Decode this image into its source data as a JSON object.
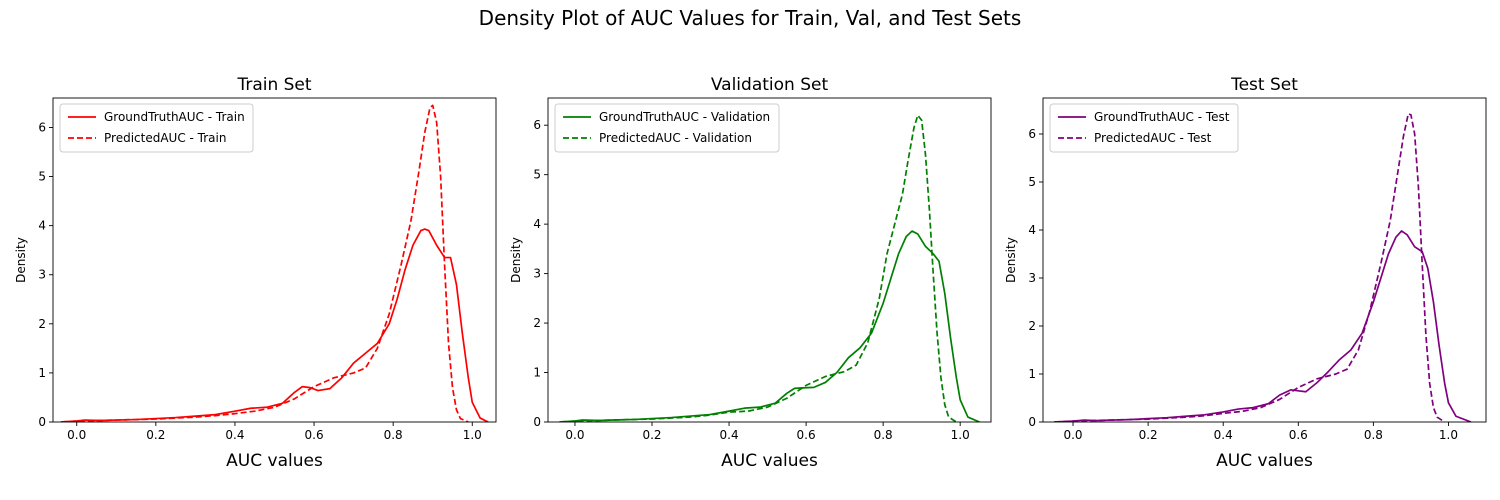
{
  "figure_title": "Density Plot of AUC Values for Train, Val, and Test Sets",
  "chart_data": [
    {
      "type": "line",
      "title": "Train Set",
      "xlabel": "AUC values",
      "ylabel": "Density",
      "xlim": [
        -0.06,
        1.06
      ],
      "ylim": [
        0,
        6.6
      ],
      "xticks": [
        0.0,
        0.2,
        0.4,
        0.6,
        0.8,
        1.0
      ],
      "xtick_labels": [
        "0.0",
        "0.2",
        "0.4",
        "0.6",
        "0.8",
        "1.0"
      ],
      "yticks": [
        0,
        1,
        2,
        3,
        4,
        5,
        6
      ],
      "ytick_labels": [
        "0",
        "1",
        "2",
        "3",
        "4",
        "5",
        "6"
      ],
      "legend_position": "top-left",
      "series": [
        {
          "name": "GroundTruthAUC - Train",
          "color": "#ff0000",
          "style": "solid",
          "points": [
            [
              -0.04,
              0.0
            ],
            [
              0.0,
              0.02
            ],
            [
              0.02,
              0.04
            ],
            [
              0.06,
              0.03
            ],
            [
              0.1,
              0.04
            ],
            [
              0.15,
              0.05
            ],
            [
              0.2,
              0.07
            ],
            [
              0.25,
              0.09
            ],
            [
              0.3,
              0.12
            ],
            [
              0.35,
              0.15
            ],
            [
              0.4,
              0.22
            ],
            [
              0.44,
              0.28
            ],
            [
              0.48,
              0.3
            ],
            [
              0.52,
              0.38
            ],
            [
              0.55,
              0.6
            ],
            [
              0.57,
              0.72
            ],
            [
              0.59,
              0.7
            ],
            [
              0.61,
              0.64
            ],
            [
              0.64,
              0.68
            ],
            [
              0.67,
              0.9
            ],
            [
              0.7,
              1.2
            ],
            [
              0.73,
              1.4
            ],
            [
              0.76,
              1.6
            ],
            [
              0.79,
              2.0
            ],
            [
              0.81,
              2.5
            ],
            [
              0.83,
              3.1
            ],
            [
              0.85,
              3.6
            ],
            [
              0.87,
              3.9
            ],
            [
              0.88,
              3.93
            ],
            [
              0.89,
              3.9
            ],
            [
              0.91,
              3.6
            ],
            [
              0.93,
              3.35
            ],
            [
              0.945,
              3.35
            ],
            [
              0.96,
              2.8
            ],
            [
              0.975,
              1.8
            ],
            [
              0.99,
              0.9
            ],
            [
              1.0,
              0.4
            ],
            [
              1.02,
              0.08
            ],
            [
              1.04,
              0.0
            ]
          ]
        },
        {
          "name": "PredictedAUC - Train",
          "color": "#ff0000",
          "style": "dashed",
          "points": [
            [
              -0.04,
              0.0
            ],
            [
              0.0,
              0.02
            ],
            [
              0.05,
              0.03
            ],
            [
              0.1,
              0.04
            ],
            [
              0.15,
              0.05
            ],
            [
              0.2,
              0.06
            ],
            [
              0.25,
              0.08
            ],
            [
              0.3,
              0.1
            ],
            [
              0.35,
              0.13
            ],
            [
              0.4,
              0.17
            ],
            [
              0.45,
              0.22
            ],
            [
              0.5,
              0.3
            ],
            [
              0.55,
              0.47
            ],
            [
              0.6,
              0.72
            ],
            [
              0.65,
              0.9
            ],
            [
              0.7,
              1.0
            ],
            [
              0.73,
              1.1
            ],
            [
              0.76,
              1.5
            ],
            [
              0.79,
              2.2
            ],
            [
              0.82,
              3.2
            ],
            [
              0.845,
              4.1
            ],
            [
              0.865,
              5.1
            ],
            [
              0.88,
              5.9
            ],
            [
              0.893,
              6.4
            ],
            [
              0.9,
              6.45
            ],
            [
              0.91,
              6.1
            ],
            [
              0.92,
              5.0
            ],
            [
              0.93,
              3.2
            ],
            [
              0.94,
              1.6
            ],
            [
              0.95,
              0.7
            ],
            [
              0.96,
              0.25
            ],
            [
              0.97,
              0.07
            ],
            [
              0.99,
              0.0
            ]
          ]
        }
      ]
    },
    {
      "type": "line",
      "title": "Validation Set",
      "xlabel": "AUC values",
      "ylabel": "Density",
      "xlim": [
        -0.07,
        1.08
      ],
      "ylim": [
        0,
        6.55
      ],
      "xticks": [
        0.0,
        0.2,
        0.4,
        0.6,
        0.8,
        1.0
      ],
      "xtick_labels": [
        "0.0",
        "0.2",
        "0.4",
        "0.6",
        "0.8",
        "1.0"
      ],
      "yticks": [
        0,
        1,
        2,
        3,
        4,
        5,
        6
      ],
      "ytick_labels": [
        "0",
        "1",
        "2",
        "3",
        "4",
        "5",
        "6"
      ],
      "legend_position": "top-left",
      "series": [
        {
          "name": "GroundTruthAUC - Validation",
          "color": "#008000",
          "style": "solid",
          "points": [
            [
              -0.04,
              0.0
            ],
            [
              0.0,
              0.02
            ],
            [
              0.02,
              0.04
            ],
            [
              0.06,
              0.03
            ],
            [
              0.1,
              0.04
            ],
            [
              0.15,
              0.05
            ],
            [
              0.2,
              0.07
            ],
            [
              0.25,
              0.09
            ],
            [
              0.3,
              0.12
            ],
            [
              0.35,
              0.15
            ],
            [
              0.4,
              0.22
            ],
            [
              0.44,
              0.28
            ],
            [
              0.48,
              0.3
            ],
            [
              0.52,
              0.38
            ],
            [
              0.55,
              0.58
            ],
            [
              0.57,
              0.68
            ],
            [
              0.59,
              0.69
            ],
            [
              0.62,
              0.7
            ],
            [
              0.65,
              0.8
            ],
            [
              0.68,
              1.0
            ],
            [
              0.71,
              1.3
            ],
            [
              0.74,
              1.5
            ],
            [
              0.77,
              1.8
            ],
            [
              0.8,
              2.4
            ],
            [
              0.82,
              2.9
            ],
            [
              0.84,
              3.4
            ],
            [
              0.86,
              3.75
            ],
            [
              0.875,
              3.86
            ],
            [
              0.89,
              3.8
            ],
            [
              0.91,
              3.55
            ],
            [
              0.93,
              3.4
            ],
            [
              0.945,
              3.25
            ],
            [
              0.96,
              2.6
            ],
            [
              0.975,
              1.7
            ],
            [
              0.99,
              0.9
            ],
            [
              1.0,
              0.45
            ],
            [
              1.02,
              0.1
            ],
            [
              1.05,
              0.0
            ]
          ]
        },
        {
          "name": "PredictedAUC - Validation",
          "color": "#008000",
          "style": "dashed",
          "points": [
            [
              -0.04,
              0.0
            ],
            [
              0.0,
              0.02
            ],
            [
              0.05,
              0.03
            ],
            [
              0.1,
              0.04
            ],
            [
              0.15,
              0.05
            ],
            [
              0.2,
              0.06
            ],
            [
              0.25,
              0.08
            ],
            [
              0.3,
              0.1
            ],
            [
              0.35,
              0.14
            ],
            [
              0.4,
              0.2
            ],
            [
              0.45,
              0.22
            ],
            [
              0.5,
              0.3
            ],
            [
              0.55,
              0.48
            ],
            [
              0.6,
              0.74
            ],
            [
              0.65,
              0.92
            ],
            [
              0.7,
              1.02
            ],
            [
              0.73,
              1.15
            ],
            [
              0.76,
              1.6
            ],
            [
              0.79,
              2.5
            ],
            [
              0.81,
              3.4
            ],
            [
              0.83,
              4.0
            ],
            [
              0.85,
              4.6
            ],
            [
              0.865,
              5.3
            ],
            [
              0.88,
              5.95
            ],
            [
              0.89,
              6.2
            ],
            [
              0.9,
              6.1
            ],
            [
              0.91,
              5.4
            ],
            [
              0.92,
              4.3
            ],
            [
              0.93,
              3.0
            ],
            [
              0.94,
              1.8
            ],
            [
              0.95,
              0.9
            ],
            [
              0.96,
              0.35
            ],
            [
              0.97,
              0.1
            ],
            [
              0.99,
              0.0
            ]
          ]
        }
      ]
    },
    {
      "type": "line",
      "title": "Test Set",
      "xlabel": "AUC values",
      "ylabel": "Density",
      "xlim": [
        -0.08,
        1.1
      ],
      "ylim": [
        0,
        6.75
      ],
      "xticks": [
        0.0,
        0.2,
        0.4,
        0.6,
        0.8,
        1.0
      ],
      "xtick_labels": [
        "0.0",
        "0.2",
        "0.4",
        "0.6",
        "0.8",
        "1.0"
      ],
      "yticks": [
        0,
        1,
        2,
        3,
        4,
        5,
        6
      ],
      "ytick_labels": [
        "0",
        "1",
        "2",
        "3",
        "4",
        "5",
        "6"
      ],
      "legend_position": "top-left",
      "series": [
        {
          "name": "GroundTruthAUC - Test",
          "color": "#800080",
          "style": "solid",
          "points": [
            [
              -0.05,
              0.0
            ],
            [
              0.0,
              0.02
            ],
            [
              0.03,
              0.04
            ],
            [
              0.06,
              0.03
            ],
            [
              0.1,
              0.04
            ],
            [
              0.15,
              0.05
            ],
            [
              0.2,
              0.07
            ],
            [
              0.25,
              0.09
            ],
            [
              0.3,
              0.12
            ],
            [
              0.35,
              0.15
            ],
            [
              0.4,
              0.21
            ],
            [
              0.44,
              0.27
            ],
            [
              0.48,
              0.3
            ],
            [
              0.52,
              0.38
            ],
            [
              0.55,
              0.56
            ],
            [
              0.58,
              0.67
            ],
            [
              0.6,
              0.65
            ],
            [
              0.62,
              0.63
            ],
            [
              0.65,
              0.82
            ],
            [
              0.68,
              1.05
            ],
            [
              0.71,
              1.3
            ],
            [
              0.74,
              1.5
            ],
            [
              0.77,
              1.85
            ],
            [
              0.8,
              2.5
            ],
            [
              0.82,
              3.0
            ],
            [
              0.84,
              3.5
            ],
            [
              0.86,
              3.85
            ],
            [
              0.875,
              3.98
            ],
            [
              0.89,
              3.9
            ],
            [
              0.91,
              3.65
            ],
            [
              0.93,
              3.55
            ],
            [
              0.945,
              3.2
            ],
            [
              0.96,
              2.5
            ],
            [
              0.975,
              1.6
            ],
            [
              0.99,
              0.8
            ],
            [
              1.0,
              0.4
            ],
            [
              1.02,
              0.12
            ],
            [
              1.06,
              0.0
            ]
          ]
        },
        {
          "name": "PredictedAUC - Test",
          "color": "#800080",
          "style": "dashed",
          "points": [
            [
              -0.05,
              0.0
            ],
            [
              0.0,
              0.02
            ],
            [
              0.05,
              0.03
            ],
            [
              0.1,
              0.04
            ],
            [
              0.15,
              0.05
            ],
            [
              0.2,
              0.06
            ],
            [
              0.25,
              0.08
            ],
            [
              0.3,
              0.1
            ],
            [
              0.35,
              0.13
            ],
            [
              0.4,
              0.18
            ],
            [
              0.45,
              0.22
            ],
            [
              0.5,
              0.3
            ],
            [
              0.55,
              0.47
            ],
            [
              0.6,
              0.72
            ],
            [
              0.65,
              0.9
            ],
            [
              0.7,
              1.0
            ],
            [
              0.73,
              1.1
            ],
            [
              0.76,
              1.5
            ],
            [
              0.79,
              2.3
            ],
            [
              0.82,
              3.3
            ],
            [
              0.845,
              4.2
            ],
            [
              0.865,
              5.2
            ],
            [
              0.88,
              5.95
            ],
            [
              0.893,
              6.42
            ],
            [
              0.9,
              6.4
            ],
            [
              0.91,
              6.0
            ],
            [
              0.92,
              4.9
            ],
            [
              0.93,
              3.3
            ],
            [
              0.94,
              1.8
            ],
            [
              0.95,
              0.8
            ],
            [
              0.96,
              0.3
            ],
            [
              0.97,
              0.1
            ],
            [
              0.99,
              0.0
            ]
          ]
        }
      ]
    }
  ]
}
